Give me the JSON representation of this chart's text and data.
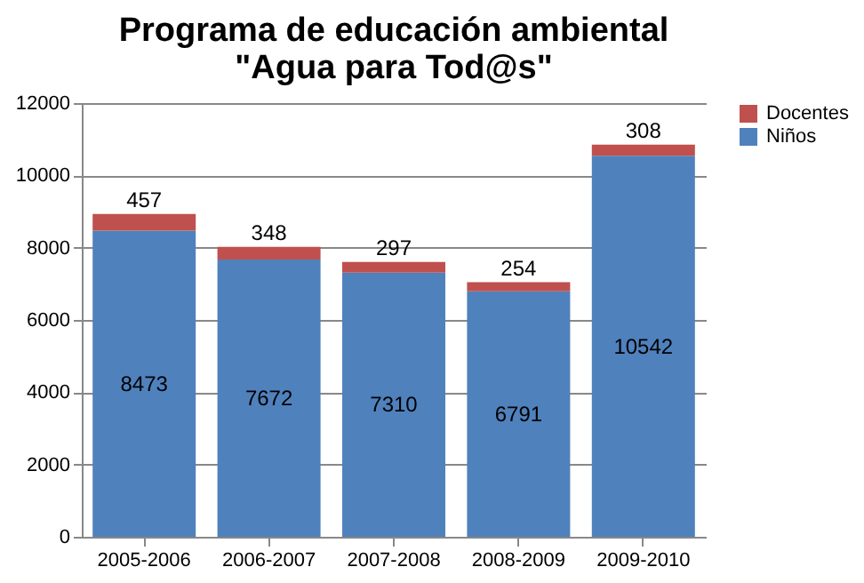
{
  "chart_data": {
    "type": "bar",
    "title": "Programa de educación ambiental\n\"Agua para Tod@s\"",
    "categories": [
      "2005-2006",
      "2006-2007",
      "2007-2008",
      "2008-2009",
      "2009-2010"
    ],
    "stacked": true,
    "series": [
      {
        "name": "Niños",
        "color": "#4f81bd",
        "values": [
          8473,
          7672,
          7310,
          6791,
          10542
        ]
      },
      {
        "name": "Docentes",
        "color": "#c0504d",
        "values": [
          457,
          348,
          297,
          254,
          308
        ]
      }
    ],
    "ylim": [
      0,
      12000
    ],
    "yticks": [
      0,
      2000,
      4000,
      6000,
      8000,
      10000,
      12000
    ],
    "grid": "y",
    "legend": "right",
    "data_labels": true
  }
}
